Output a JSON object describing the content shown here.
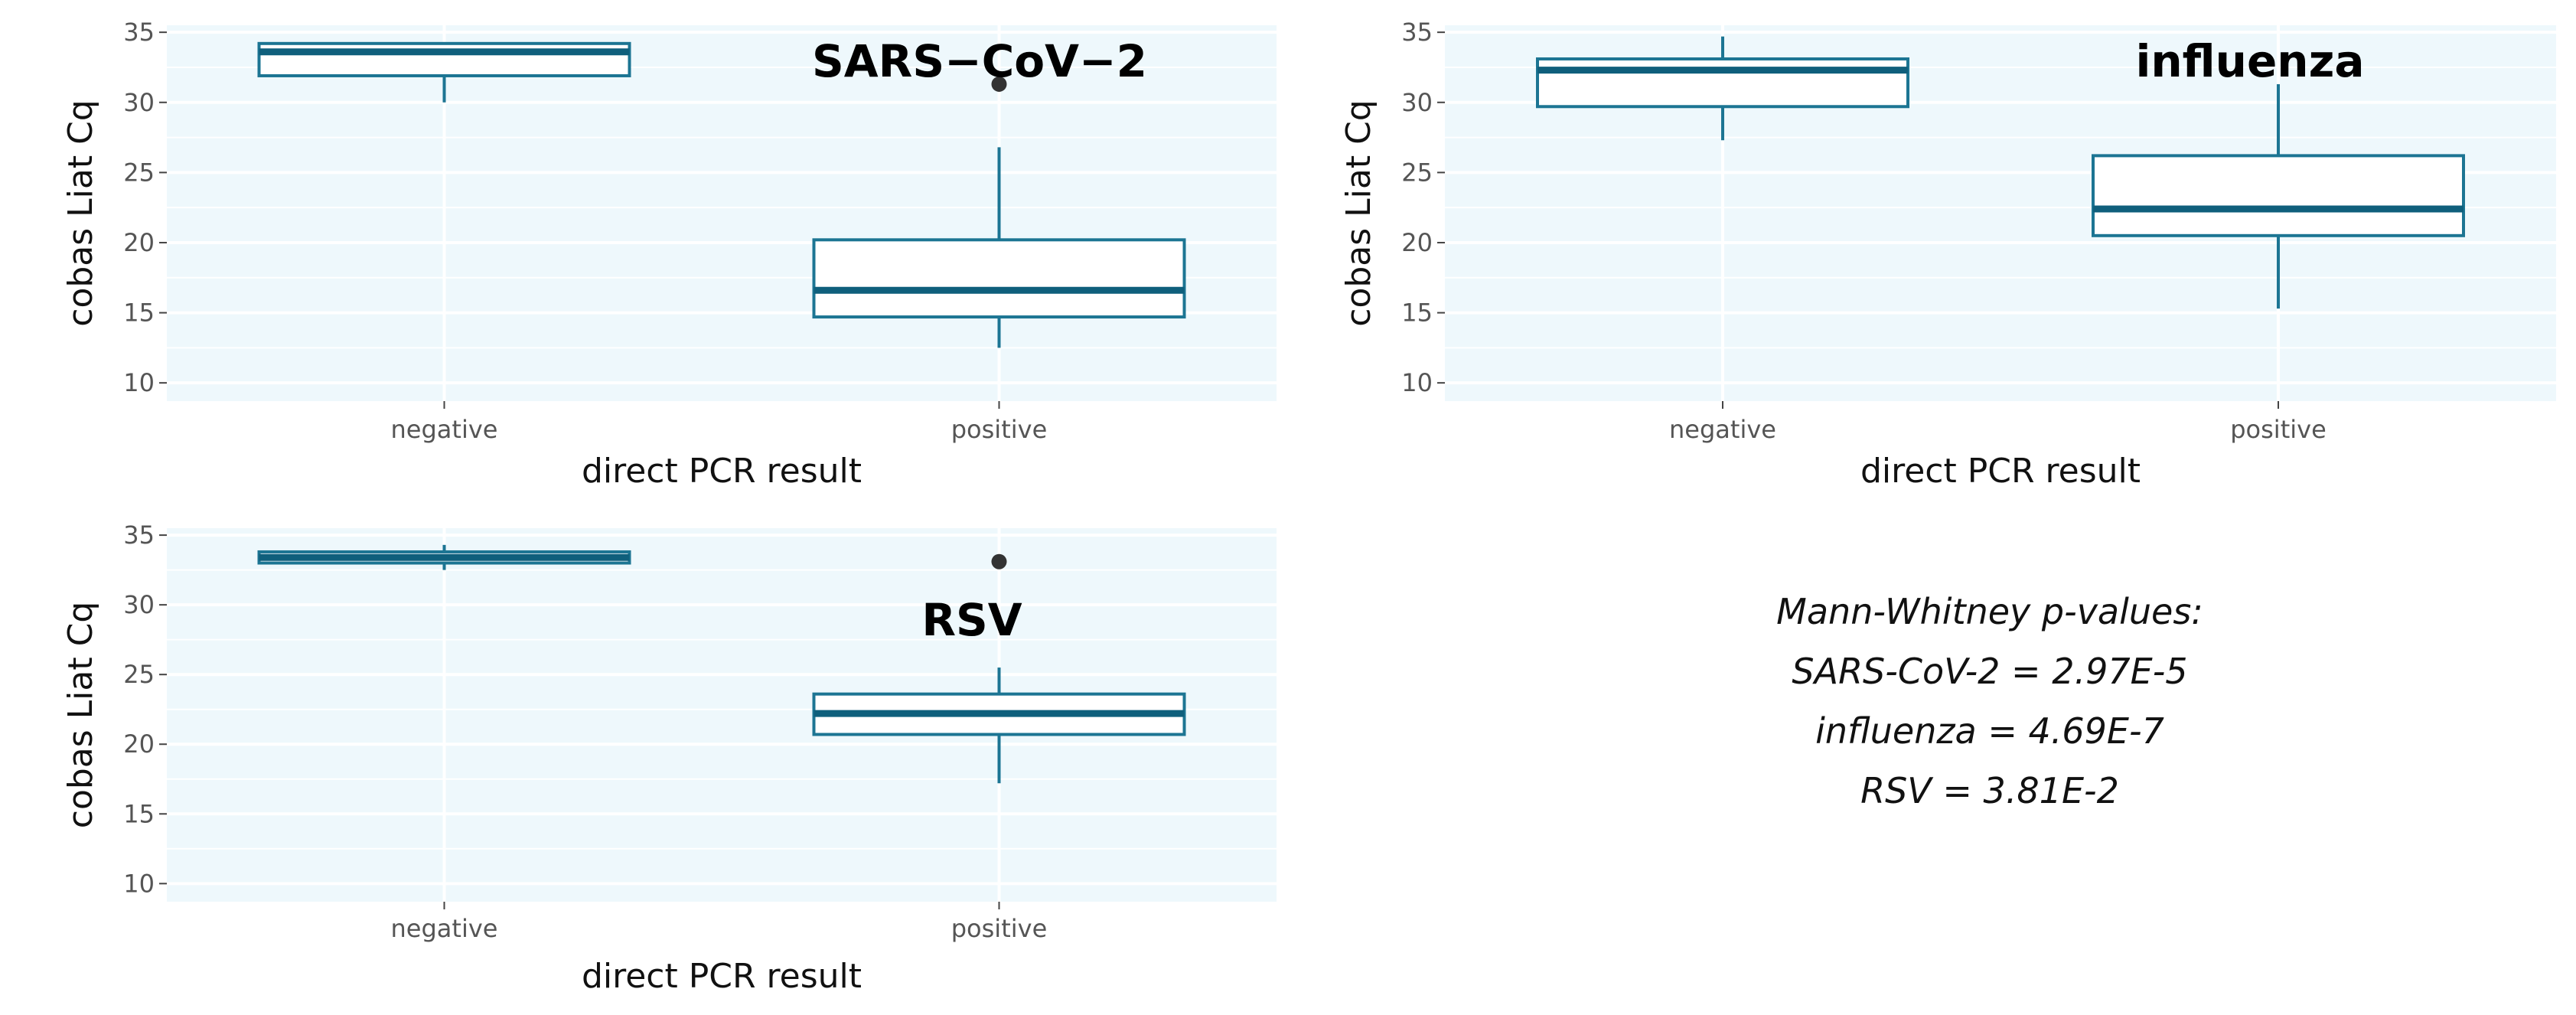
{
  "colors": {
    "panel_bg": "#eef8fc",
    "grid": "#ffffff",
    "box_stroke": "#1c7593",
    "median": "#0f5f7c",
    "outlier": "#333333",
    "box_fill": "#ffffff"
  },
  "note": {
    "heading": "Mann-Whitney p-values:",
    "lines": [
      "SARS-CoV-2 = 2.97E-5",
      "influenza = 4.69E-7",
      "RSV = 3.81E-2"
    ]
  },
  "chart_data": [
    {
      "type": "box",
      "title": "SARS−CoV−2",
      "xlabel": "direct PCR result",
      "ylabel": "cobas Liat Cq",
      "categories": [
        "negative",
        "positive"
      ],
      "yticks": [
        10,
        15,
        20,
        25,
        30,
        35
      ],
      "ylim": [
        8.7,
        35.5
      ],
      "grid": true,
      "boxes": [
        {
          "category": "negative",
          "whisker_low": 30.0,
          "q1": 31.9,
          "median": 33.6,
          "q3": 34.2,
          "whisker_high": 34.2,
          "outliers": []
        },
        {
          "category": "positive",
          "whisker_low": 12.5,
          "q1": 14.7,
          "median": 16.6,
          "q3": 20.2,
          "whisker_high": 26.8,
          "outliers": [
            31.3
          ]
        }
      ]
    },
    {
      "type": "box",
      "title": "influenza",
      "xlabel": "direct PCR result",
      "ylabel": "cobas Liat Cq",
      "categories": [
        "negative",
        "positive"
      ],
      "yticks": [
        10,
        15,
        20,
        25,
        30,
        35
      ],
      "ylim": [
        8.7,
        35.5
      ],
      "grid": true,
      "boxes": [
        {
          "category": "negative",
          "whisker_low": 27.3,
          "q1": 29.7,
          "median": 32.3,
          "q3": 33.1,
          "whisker_high": 34.7,
          "outliers": []
        },
        {
          "category": "positive",
          "whisker_low": 15.3,
          "q1": 20.5,
          "median": 22.4,
          "q3": 26.2,
          "whisker_high": 31.3,
          "outliers": []
        }
      ]
    },
    {
      "type": "box",
      "title": "RSV",
      "xlabel": "direct PCR result",
      "ylabel": "cobas Liat Cq",
      "categories": [
        "negative",
        "positive"
      ],
      "yticks": [
        10,
        15,
        20,
        25,
        30,
        35
      ],
      "ylim": [
        8.7,
        35.5
      ],
      "grid": true,
      "boxes": [
        {
          "category": "negative",
          "whisker_low": 32.5,
          "q1": 33.0,
          "median": 33.4,
          "q3": 33.8,
          "whisker_high": 34.3,
          "outliers": []
        },
        {
          "category": "positive",
          "whisker_low": 17.2,
          "q1": 20.7,
          "median": 22.2,
          "q3": 23.6,
          "whisker_high": 25.5,
          "outliers": [
            33.1
          ]
        }
      ]
    }
  ]
}
